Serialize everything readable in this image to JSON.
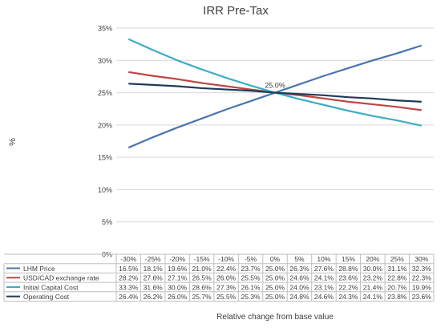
{
  "chart_data": {
    "type": "line",
    "title": "IRR Pre-Tax",
    "ylabel": "%",
    "xlabel": "Relative change from base value",
    "ylim": [
      0,
      35
    ],
    "yticks": [
      0,
      5,
      10,
      15,
      20,
      25,
      30,
      35
    ],
    "ytick_suffix": "%",
    "grid": "horizontal",
    "legend": "data-table",
    "categories": [
      "-30%",
      "-25%",
      "-20%",
      "-15%",
      "-10%",
      "-5%",
      "0%",
      "5%",
      "10%",
      "15%",
      "20%",
      "25%",
      "30%"
    ],
    "series": [
      {
        "name": "LHM Price",
        "color": "#4a74b0",
        "values": [
          16.5,
          18.1,
          19.6,
          21.0,
          22.4,
          23.7,
          25.0,
          26.3,
          27.6,
          28.8,
          30.0,
          31.1,
          32.3
        ],
        "labels": [
          "16.5%",
          "18.1%",
          "19.6%",
          "21.0%",
          "22.4%",
          "23.7%",
          "25.0%",
          "26.3%",
          "27.6%",
          "28.8%",
          "30.0%",
          "31.1%",
          "32.3%"
        ]
      },
      {
        "name": "USD/CAD exchange rate",
        "color": "#bc4745",
        "values": [
          28.2,
          27.6,
          27.1,
          26.5,
          26.0,
          25.5,
          25.0,
          24.6,
          24.1,
          23.6,
          23.2,
          22.8,
          22.3
        ],
        "labels": [
          "28.2%",
          "27.6%",
          "27.1%",
          "26.5%",
          "26.0%",
          "25.5%",
          "25.0%",
          "24.6%",
          "24.1%",
          "23.6%",
          "23.2%",
          "22.8%",
          "22.3%"
        ]
      },
      {
        "name": "Initial Capital Cost",
        "color": "#3eacc4",
        "values": [
          33.3,
          31.6,
          30.0,
          28.6,
          27.3,
          26.1,
          25.0,
          24.0,
          23.1,
          22.2,
          21.4,
          20.7,
          19.9
        ],
        "labels": [
          "33.3%",
          "31.6%",
          "30.0%",
          "28.6%",
          "27.3%",
          "26.1%",
          "25.0%",
          "24.0%",
          "23.1%",
          "22.2%",
          "21.4%",
          "20.7%",
          "19.9%"
        ]
      },
      {
        "name": "Operating Cost",
        "color": "#1f3a5a",
        "values": [
          26.4,
          26.2,
          26.0,
          25.7,
          25.5,
          25.3,
          25.0,
          24.8,
          24.6,
          24.3,
          24.1,
          23.8,
          23.6
        ],
        "labels": [
          "26.4%",
          "26.2%",
          "26.0%",
          "25.7%",
          "25.5%",
          "25.3%",
          "25.0%",
          "24.8%",
          "24.6%",
          "24.3%",
          "24.1%",
          "23.8%",
          "23.6%"
        ]
      }
    ],
    "annotations": [
      {
        "text": "25.0%",
        "x": "0%",
        "y": 25.0
      }
    ]
  }
}
